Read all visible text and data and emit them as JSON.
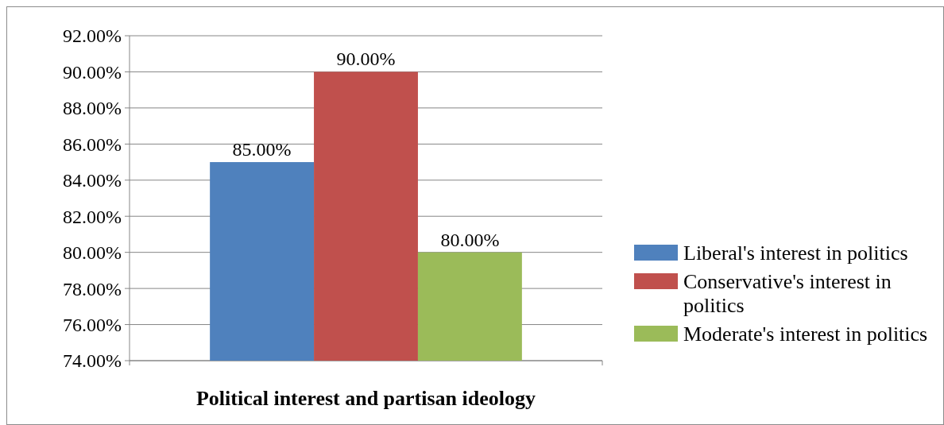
{
  "chart_data": {
    "type": "bar",
    "xlabel": "Political interest and partisan ideology",
    "categories": [
      null
    ],
    "series": [
      {
        "name": "Liberal's interest in politics",
        "color": "#4f81bd",
        "values": [
          85
        ],
        "value_labels": [
          "85.00%"
        ]
      },
      {
        "name": "Conservative's interest in politics",
        "color": "#c0504d",
        "values": [
          90
        ],
        "value_labels": [
          "90.00%"
        ]
      },
      {
        "name": "Moderate's interest in politics",
        "color": "#9bbb59",
        "values": [
          80
        ],
        "value_labels": [
          "80.00%"
        ]
      }
    ],
    "ylim": [
      74,
      92
    ],
    "yticks": [
      {
        "value": 74,
        "label": "74.00%"
      },
      {
        "value": 76,
        "label": "76.00%"
      },
      {
        "value": 78,
        "label": "78.00%"
      },
      {
        "value": 80,
        "label": "80.00%"
      },
      {
        "value": 82,
        "label": "82.00%"
      },
      {
        "value": 84,
        "label": "84.00%"
      },
      {
        "value": 86,
        "label": "86.00%"
      },
      {
        "value": 88,
        "label": "88.00%"
      },
      {
        "value": 90,
        "label": "90.00%"
      },
      {
        "value": 92,
        "label": "92.00%"
      }
    ],
    "grid": "y",
    "legend": "right"
  }
}
